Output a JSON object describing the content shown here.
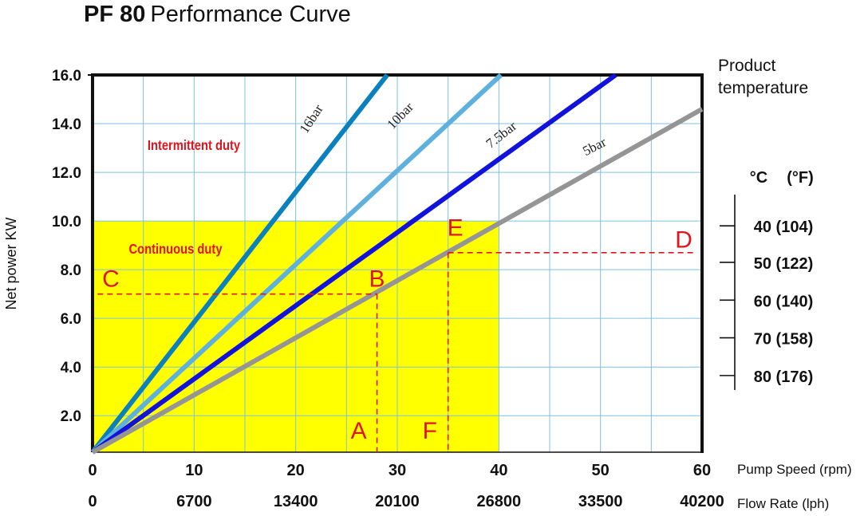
{
  "title": {
    "bold": "PF 80",
    "normal": "Performance Curve"
  },
  "chart_data": {
    "type": "line",
    "ylabel": "Net power KW",
    "y_ticks": [
      "16.0",
      "14.0",
      "12.0",
      "10.0",
      "8.0",
      "6.0",
      "4.0",
      "2.0"
    ],
    "ylim": [
      0.5,
      16
    ],
    "x_axis": {
      "label": "Pump Speed (rpm)",
      "ticks": [
        "0",
        "10",
        "20",
        "30",
        "40",
        "50",
        "60"
      ],
      "values": [
        0,
        10,
        20,
        30,
        40,
        50,
        60
      ],
      "xlim": [
        0,
        60
      ]
    },
    "x2_axis": {
      "label": "Flow Rate (lph)",
      "ticks": [
        "0",
        "6700",
        "13400",
        "20100",
        "26800",
        "33500",
        "40200"
      ]
    },
    "grid": true,
    "series": [
      {
        "name": "16bar",
        "color": "#0a80bf",
        "points": [
          [
            0,
            0.5
          ],
          [
            29,
            16
          ]
        ]
      },
      {
        "name": "10bar",
        "color": "#5eb0dd",
        "points": [
          [
            0,
            0.5
          ],
          [
            40.2,
            16
          ]
        ]
      },
      {
        "name": "7.5bar",
        "color": "#1212dd",
        "points": [
          [
            0,
            0.5
          ],
          [
            51.5,
            16
          ]
        ]
      },
      {
        "name": "5bar",
        "color": "#959596",
        "points": [
          [
            0,
            0.5
          ],
          [
            60,
            14.6
          ]
        ]
      }
    ],
    "regions": {
      "continuous": {
        "label": "Continuous duty",
        "x_max": 40,
        "y_max": 10,
        "color": "#ffff00"
      },
      "intermittent": {
        "label": "Intermittent duty"
      }
    },
    "reference_lines": [
      {
        "from": "A",
        "to": "B",
        "to_c": "C",
        "x": 28,
        "y": 7
      },
      {
        "from": "F",
        "to": "E",
        "to_d": "D",
        "x": 35,
        "y": 8.7
      }
    ],
    "markers": [
      {
        "label": "A",
        "x": 26.2,
        "y": 1.05
      },
      {
        "label": "B",
        "x": 28,
        "y": 7.3
      },
      {
        "label": "C",
        "x": 1.8,
        "y": 7.3
      },
      {
        "label": "D",
        "x": 58.2,
        "y": 8.9
      },
      {
        "label": "E",
        "x": 35.7,
        "y": 9.4
      },
      {
        "label": "F",
        "x": 33.2,
        "y": 1.05
      }
    ],
    "product_temperature": {
      "title_line1": "Product",
      "title_line2": "temperature",
      "unit_c": "°C",
      "unit_f": "(°F)",
      "scale": [
        {
          "label": "40 (104)",
          "y": 9.8
        },
        {
          "label": "50 (122)",
          "y": 8.3
        },
        {
          "label": "60 (140)",
          "y": 6.75
        },
        {
          "label": "70 (158)",
          "y": 5.2
        },
        {
          "label": "80 (176)",
          "y": 3.65
        }
      ]
    }
  }
}
